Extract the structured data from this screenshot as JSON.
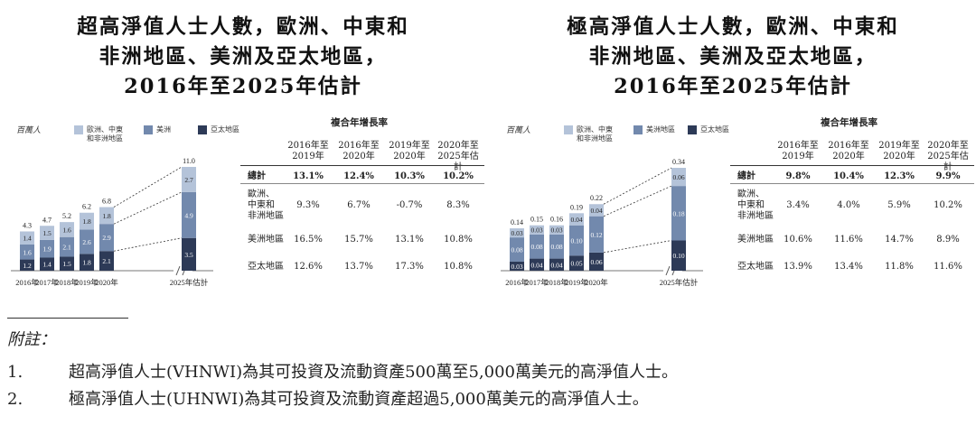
{
  "panels": [
    {
      "title_lines": [
        "超高淨值人士人數，歐洲、中東和",
        "非洲地區、美洲及亞太地區，",
        "2016年至2025年估計"
      ],
      "unit_label": "百萬人",
      "legend": [
        {
          "label": "歐洲、中東和非洲地區",
          "color": "#b4c3d9"
        },
        {
          "label": "美洲",
          "color": "#7289ad"
        },
        {
          "label": "亞太地區",
          "color": "#2d3a57"
        }
      ],
      "cagr": {
        "caption": "複合年增長率",
        "columns": [
          "2016年至2019年",
          "2016年至2020年",
          "2019年至2020年",
          "2020年至2025年估計"
        ],
        "rows": [
          {
            "label": "總計",
            "values": [
              "13.1%",
              "12.4%",
              "10.3%",
              "10.2%"
            ],
            "bold": true
          },
          {
            "label": "歐洲、中東和非洲地區",
            "values": [
              "9.3%",
              "6.7%",
              "-0.7%",
              "8.3%"
            ],
            "bold": false
          },
          {
            "label": "美洲地區",
            "values": [
              "16.5%",
              "15.7%",
              "13.1%",
              "10.8%"
            ],
            "bold": false
          },
          {
            "label": "亞太地區",
            "values": [
              "12.6%",
              "13.7%",
              "17.3%",
              "10.8%"
            ],
            "bold": false
          }
        ]
      }
    },
    {
      "title_lines": [
        "極高淨值人士人數，歐洲、中東和",
        "非洲地區、美洲及亞太地區，",
        "2016年至2025年估計"
      ],
      "unit_label": "百萬人",
      "legend": [
        {
          "label": "歐洲、中東和非洲地區",
          "color": "#b4c3d9"
        },
        {
          "label": "美洲地區",
          "color": "#7289ad"
        },
        {
          "label": "亞太地區",
          "color": "#2d3a57"
        }
      ],
      "cagr": {
        "caption": "複合年增長率",
        "columns": [
          "2016年至2019年",
          "2016年至2020年",
          "2019年至2020年",
          "2020年至2025年估計"
        ],
        "rows": [
          {
            "label": "總計",
            "values": [
              "9.8%",
              "10.4%",
              "12.3%",
              "9.9%"
            ],
            "bold": true
          },
          {
            "label": "歐洲、中東和非洲地區",
            "values": [
              "3.4%",
              "4.0%",
              "5.9%",
              "10.2%"
            ],
            "bold": false
          },
          {
            "label": "美洲地區",
            "values": [
              "10.6%",
              "11.6%",
              "14.7%",
              "8.9%"
            ],
            "bold": false
          },
          {
            "label": "亞太地區",
            "values": [
              "13.9%",
              "13.4%",
              "11.8%",
              "11.6%"
            ],
            "bold": false
          }
        ]
      }
    }
  ],
  "chart_data": [
    {
      "type": "bar",
      "stacked": true,
      "title": "超高淨值人士人數，歐洲、中東和非洲地區、美洲及亞太地區，2016年至2025年估計",
      "ylabel": "百萬人",
      "categories": [
        "2016年",
        "2017年",
        "2018年",
        "2019年",
        "2020年",
        "2025年估計"
      ],
      "series": [
        {
          "name": "亞太地區",
          "color": "#2d3a57",
          "values": [
            1.2,
            1.4,
            1.5,
            1.8,
            2.1,
            3.5
          ],
          "labels": [
            "1.2",
            "1.4",
            "1.5",
            "1.8",
            "2.1",
            "3.5"
          ]
        },
        {
          "name": "美洲",
          "color": "#7289ad",
          "values": [
            1.6,
            1.9,
            2.1,
            2.6,
            2.9,
            4.9
          ],
          "labels": [
            "1.6",
            "1.9",
            "2.1",
            "2.6",
            "2.9",
            "4.9"
          ]
        },
        {
          "name": "歐洲、中東和非洲地區",
          "color": "#b4c3d9",
          "values": [
            1.4,
            1.5,
            1.6,
            1.8,
            1.8,
            2.7
          ],
          "labels": [
            "1.4",
            "1.5",
            "1.6",
            "1.8",
            "1.8",
            "2.7"
          ]
        }
      ],
      "totals": [
        4.3,
        4.7,
        5.2,
        6.2,
        6.8,
        11.0
      ],
      "total_labels": [
        "4.3",
        "4.7",
        "5.2",
        "6.2",
        "6.8",
        "11.0"
      ],
      "axis_break": true,
      "ylim": [
        0,
        11
      ]
    },
    {
      "type": "bar",
      "stacked": true,
      "title": "極高淨值人士人數，歐洲、中東和非洲地區、美洲及亞太地區，2016年至2025年估計",
      "ylabel": "百萬人",
      "categories": [
        "2016年",
        "2017年",
        "2018年",
        "2019年",
        "2020年",
        "2025年估計"
      ],
      "series": [
        {
          "name": "亞太地區",
          "color": "#2d3a57",
          "values": [
            0.03,
            0.04,
            0.04,
            0.05,
            0.06,
            0.1
          ],
          "labels": [
            "0.03",
            "0.04",
            "0.04",
            "0.05",
            "0.06",
            "0.10"
          ]
        },
        {
          "name": "美洲地區",
          "color": "#7289ad",
          "values": [
            0.08,
            0.08,
            0.08,
            0.1,
            0.12,
            0.18
          ],
          "labels": [
            "0.08",
            "0.08",
            "0.08",
            "0.10",
            "0.12",
            "0.18"
          ]
        },
        {
          "name": "歐洲、中東和非洲地區",
          "color": "#b4c3d9",
          "values": [
            0.03,
            0.03,
            0.03,
            0.04,
            0.04,
            0.06
          ],
          "labels": [
            "0.03",
            "0.03",
            "0.03",
            "0.04",
            "0.04",
            "0.06"
          ]
        }
      ],
      "totals": [
        0.14,
        0.15,
        0.16,
        0.19,
        0.22,
        0.34
      ],
      "total_labels": [
        "0.14",
        "0.15",
        "0.16",
        "0.19",
        "0.22",
        "0.34"
      ],
      "axis_break": true,
      "ylim": [
        0,
        0.34
      ]
    }
  ],
  "notes": {
    "heading": "附註：",
    "items": [
      {
        "num": "1.",
        "text": "超高淨值人士(VHNWI)為其可投資及流動資產500萬至5,000萬美元的高淨值人士。"
      },
      {
        "num": "2.",
        "text": "極高淨值人士(UHNWI)為其可投資及流動資產超過5,000萬美元的高淨值人士。"
      }
    ]
  }
}
